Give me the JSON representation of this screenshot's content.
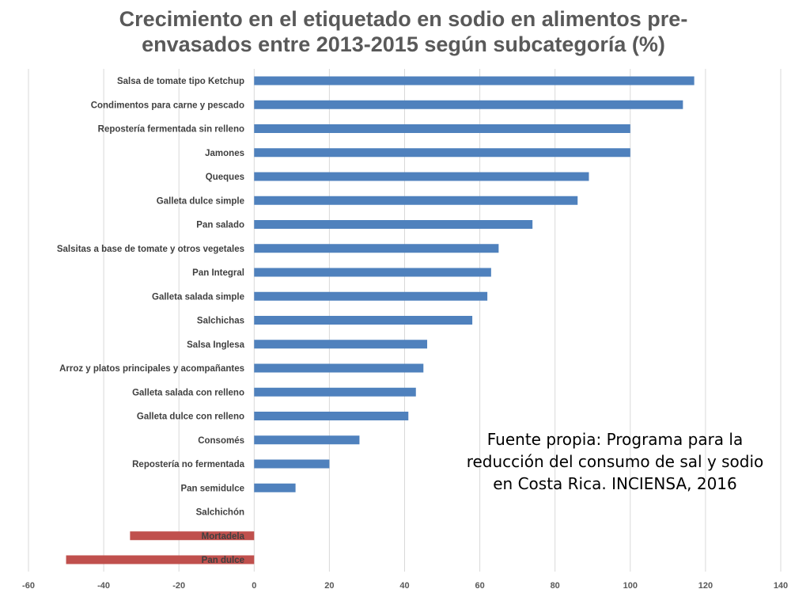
{
  "colors": {
    "positive_bar": "#4f81bd",
    "negative_bar": "#c0504d",
    "gridline": "#d9d9d9",
    "axis_text": "#595959",
    "category_text": "#404040"
  },
  "chart_data": {
    "type": "bar",
    "orientation": "horizontal",
    "title": "Crecimiento en el  etiquetado en sodio en alimentos pre-envasados entre 2013-2015 según subcategoría (%)",
    "xlabel": "",
    "ylabel": "",
    "xlim": [
      -60,
      140
    ],
    "x_ticks": [
      "-60",
      "-40",
      "-20",
      "0",
      "20",
      "40",
      "60",
      "80",
      "100",
      "120",
      "140"
    ],
    "grid": "vertical",
    "legend": "none",
    "categories": [
      "Salsa de tomate tipo Ketchup",
      "Condimentos para carne y pescado",
      "Repostería fermentada sin relleno",
      "Jamones",
      "Queques",
      "Galleta dulce simple",
      "Pan salado",
      "Salsitas a base de tomate y otros vegetales",
      "Pan Integral",
      "Galleta salada simple",
      "Salchichas",
      "Salsa Inglesa",
      "Arroz y platos principales y acompañantes",
      "Galleta salada con relleno",
      "Galleta dulce con relleno",
      "Consomés",
      "Repostería no fermentada",
      "Pan semidulce",
      "Salchichón",
      "Mortadela",
      "Pan dulce"
    ],
    "values": [
      117,
      114,
      100,
      100,
      89,
      86,
      74,
      65,
      63,
      62,
      58,
      46,
      45,
      43,
      41,
      28,
      20,
      11,
      0,
      -33,
      -50
    ]
  },
  "annotation": {
    "source_text": "Fuente propia: Programa para la reducción del consumo de sal y sodio en Costa Rica. INCIENSA, 2016"
  }
}
